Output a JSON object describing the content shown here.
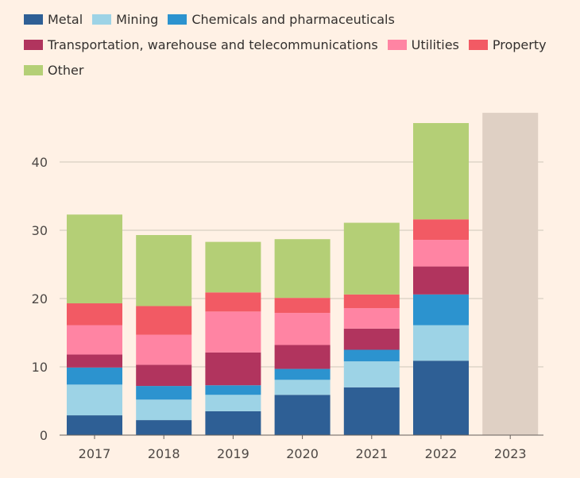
{
  "chart_data": {
    "type": "bar",
    "stacked": true,
    "title": "",
    "xlabel": "",
    "ylabel": "",
    "ylim": [
      0,
      47
    ],
    "yticks": [
      0,
      10,
      20,
      30,
      40
    ],
    "categories": [
      "2017",
      "2018",
      "2019",
      "2020",
      "2021",
      "2022",
      "2023"
    ],
    "series": [
      {
        "name": "Metal",
        "color": "#2e5f95",
        "values": [
          2.9,
          2.2,
          3.5,
          5.9,
          7.0,
          10.9,
          null
        ]
      },
      {
        "name": "Mining",
        "color": "#9dd3e6",
        "values": [
          4.5,
          3.0,
          2.4,
          2.2,
          3.8,
          5.2,
          null
        ]
      },
      {
        "name": "Chemicals and pharmaceuticals",
        "color": "#2c93cf",
        "values": [
          2.5,
          2.0,
          1.4,
          1.6,
          1.7,
          4.5,
          null
        ]
      },
      {
        "name": "Transportation, warehouse and telecommunications",
        "color": "#b1345e",
        "values": [
          1.9,
          3.1,
          4.8,
          3.5,
          3.1,
          4.1,
          null
        ]
      },
      {
        "name": "Utilities",
        "color": "#ff84a3",
        "values": [
          4.3,
          4.4,
          6.0,
          4.7,
          3.0,
          3.9,
          null
        ]
      },
      {
        "name": "Property",
        "color": "#f25a64",
        "values": [
          3.2,
          4.2,
          2.8,
          2.2,
          2.0,
          3.0,
          null
        ]
      },
      {
        "name": "Other",
        "color": "#b4cf76",
        "values": [
          13.0,
          10.4,
          7.4,
          8.6,
          10.5,
          14.1,
          null
        ]
      }
    ],
    "total_only": {
      "category": "2023",
      "value": 47.2,
      "color": "#dfd0c4"
    }
  },
  "legend_rows": [
    [
      0,
      1,
      2
    ],
    [
      3,
      4,
      5
    ],
    [
      6
    ]
  ]
}
